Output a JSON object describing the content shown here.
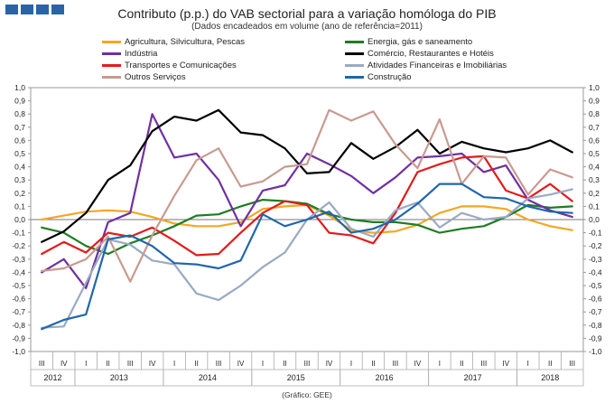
{
  "header": {
    "title": "Contributo (p.p.) do VAB sectorial para a variação homóloga do PIB",
    "subtitle": "(Dados encadeados em volume (ano de referência=2011)"
  },
  "source": "(Gráfico: GEE)",
  "colors": {
    "agricultura": "#f5a623",
    "industria": "#7030a0",
    "transportes": "#e31b1b",
    "outros": "#c99a90",
    "energia": "#1e7d22",
    "comercio": "#000000",
    "financeiras": "#9aaac4",
    "construcao": "#2166ac"
  },
  "chart_data": {
    "type": "line",
    "title": "Contributo (p.p.) do VAB sectorial para a variação homóloga do PIB",
    "ylim": [
      -1.0,
      1.0
    ],
    "ytick_step": 0.1,
    "y_tick_labels": [
      "-1,0",
      "-0,9",
      "-0,8",
      "-0,7",
      "-0,6",
      "-0,5",
      "-0,4",
      "-0,3",
      "-0,2",
      "-0,1",
      "0,0",
      "0,1",
      "0,2",
      "0,3",
      "0,4",
      "0,5",
      "0,6",
      "0,7",
      "0,8",
      "0,9",
      "1,0"
    ],
    "x_quarters": [
      "III",
      "IV",
      "I",
      "II",
      "III",
      "IV",
      "I",
      "II",
      "III",
      "IV",
      "I",
      "II",
      "III",
      "IV",
      "I",
      "II",
      "III",
      "IV",
      "I",
      "II",
      "III",
      "IV",
      "I",
      "II",
      "III"
    ],
    "x_years": [
      {
        "label": "2012",
        "start": 0,
        "end": 1
      },
      {
        "label": "2013",
        "start": 2,
        "end": 5
      },
      {
        "label": "2014",
        "start": 6,
        "end": 9
      },
      {
        "label": "2015",
        "start": 10,
        "end": 13
      },
      {
        "label": "2016",
        "start": 14,
        "end": 17
      },
      {
        "label": "2017",
        "start": 18,
        "end": 21
      },
      {
        "label": "2018",
        "start": 22,
        "end": 24
      }
    ],
    "series": [
      {
        "key": "agricultura",
        "name": "Agricultura, Silvicultura, Pescas",
        "values": [
          0.0,
          0.03,
          0.06,
          0.07,
          0.06,
          0.02,
          -0.03,
          -0.05,
          -0.05,
          -0.02,
          0.08,
          0.1,
          0.11,
          0.03,
          -0.08,
          -0.1,
          -0.09,
          -0.04,
          0.05,
          0.1,
          0.1,
          0.08,
          0.0,
          -0.05,
          -0.08
        ]
      },
      {
        "key": "energia",
        "name": "Energia, gás e saneamento",
        "values": [
          -0.06,
          -0.1,
          -0.2,
          -0.26,
          -0.18,
          -0.12,
          -0.05,
          0.03,
          0.04,
          0.1,
          0.15,
          0.14,
          0.12,
          0.04,
          0.0,
          -0.02,
          -0.02,
          -0.04,
          -0.1,
          -0.07,
          -0.05,
          0.02,
          0.11,
          0.09,
          0.1
        ]
      },
      {
        "key": "industria",
        "name": "Indústria",
        "values": [
          -0.4,
          -0.3,
          -0.52,
          -0.02,
          0.05,
          0.8,
          0.47,
          0.5,
          0.3,
          -0.05,
          0.22,
          0.26,
          0.5,
          0.42,
          0.33,
          0.2,
          0.32,
          0.47,
          0.48,
          0.5,
          0.36,
          0.41,
          0.15,
          0.07,
          0.02
        ]
      },
      {
        "key": "comercio",
        "name": "Comércio, Restaurantes e Hotéis",
        "values": [
          -0.17,
          -0.09,
          0.05,
          0.3,
          0.41,
          0.67,
          0.78,
          0.75,
          0.83,
          0.66,
          0.64,
          0.54,
          0.35,
          0.36,
          0.58,
          0.46,
          0.55,
          0.68,
          0.5,
          0.59,
          0.54,
          0.51,
          0.54,
          0.6,
          0.51
        ]
      },
      {
        "key": "transportes",
        "name": "Transportes e Comunicações",
        "values": [
          -0.26,
          -0.17,
          -0.25,
          -0.1,
          -0.13,
          -0.06,
          -0.16,
          -0.27,
          -0.26,
          -0.1,
          0.05,
          0.14,
          0.11,
          -0.1,
          -0.12,
          -0.18,
          0.05,
          0.36,
          0.42,
          0.47,
          0.48,
          0.22,
          0.16,
          0.27,
          0.14
        ]
      },
      {
        "key": "financeiras",
        "name": "Atividades Financeiras e Imobiliárias",
        "values": [
          -0.82,
          -0.81,
          -0.48,
          -0.15,
          -0.19,
          -0.31,
          -0.34,
          -0.56,
          -0.61,
          -0.5,
          -0.36,
          -0.25,
          0.0,
          0.13,
          -0.07,
          -0.13,
          0.07,
          0.13,
          -0.06,
          0.05,
          0.0,
          0.02,
          0.16,
          0.19,
          0.23
        ]
      },
      {
        "key": "outros",
        "name": "Outros Serviços",
        "values": [
          -0.39,
          -0.37,
          -0.3,
          -0.13,
          -0.47,
          -0.12,
          0.18,
          0.45,
          0.54,
          0.25,
          0.29,
          0.4,
          0.42,
          0.83,
          0.75,
          0.82,
          0.57,
          0.39,
          0.76,
          0.27,
          0.48,
          0.47,
          0.19,
          0.38,
          0.32
        ]
      },
      {
        "key": "construcao",
        "name": "Construção",
        "values": [
          -0.83,
          -0.76,
          -0.72,
          -0.15,
          -0.12,
          -0.2,
          -0.33,
          -0.34,
          -0.37,
          -0.31,
          0.04,
          -0.05,
          0.0,
          0.06,
          -0.1,
          -0.07,
          0.0,
          0.12,
          0.27,
          0.27,
          0.17,
          0.16,
          0.1,
          0.06,
          0.05
        ]
      }
    ]
  }
}
